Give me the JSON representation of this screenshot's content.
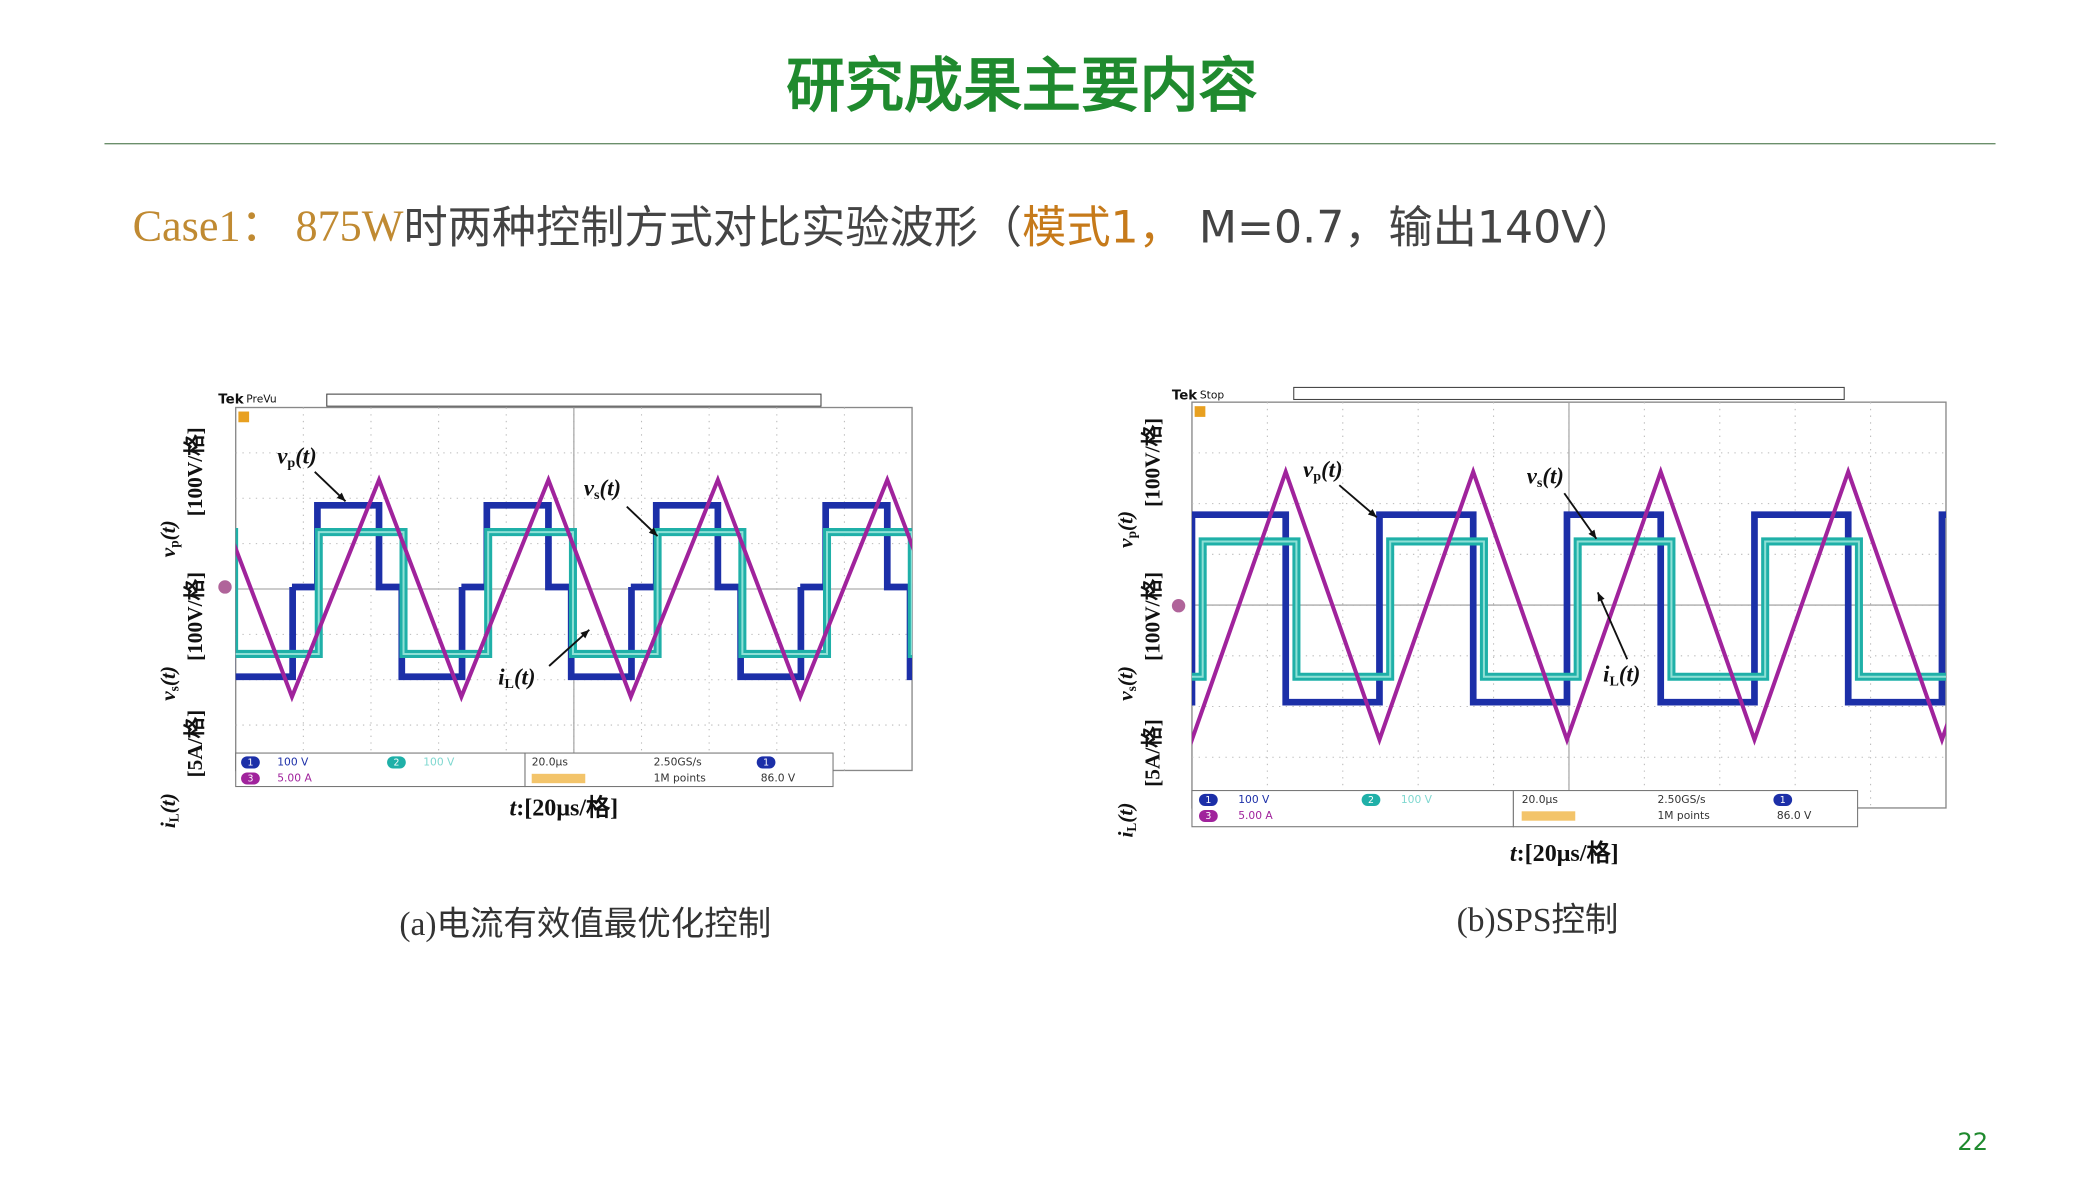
{
  "title": "研究成果主要内容",
  "subtitle": {
    "case": "Case1：",
    "power": "875W",
    "text1": "时两种控制方式对比实验波形（",
    "mode": "模式1，",
    "text2": "M=0.7，输出140V）"
  },
  "panels": [
    {
      "brand": "Tek",
      "status": "PreVu",
      "signals": {
        "vp": {
          "var": "v",
          "sub": "p",
          "arg": "(t)"
        },
        "vs": {
          "var": "v",
          "sub": "s",
          "arg": "(t)"
        },
        "il": {
          "var": "i",
          "sub": "L",
          "arg": "(t)"
        }
      },
      "y_units": {
        "vp": "[100V/格]",
        "vs": "[100V/格]",
        "il": "[5A/格]"
      },
      "x_label": {
        "var": "t",
        "unit": ":[20μs/格]"
      },
      "readout": {
        "ch1": "1",
        "ch1_scale": "100 V",
        "ch3": "3",
        "ch3_scale": "5.00 A",
        "ch2": "2",
        "ch2_scale": "100 V",
        "timebase": "20.0μs",
        "rate": "2.50GS/s",
        "points": "1M points",
        "trig_ch": "1",
        "trig_level": "86.0 V"
      },
      "caption": "(a)电流有效值最优化控制"
    },
    {
      "brand": "Tek",
      "status": "Stop",
      "signals": {
        "vp": {
          "var": "v",
          "sub": "p",
          "arg": "(t)"
        },
        "vs": {
          "var": "v",
          "sub": "s",
          "arg": "(t)"
        },
        "il": {
          "var": "i",
          "sub": "L",
          "arg": "(t)"
        }
      },
      "y_units": {
        "vp": "[100V/格]",
        "vs": "[100V/格]",
        "il": "[5A/格]"
      },
      "x_label": {
        "var": "t",
        "unit": ":[20μs/格]"
      },
      "readout": {
        "ch1": "1",
        "ch1_scale": "100 V",
        "ch3": "3",
        "ch3_scale": "5.00 A",
        "ch2": "2",
        "ch2_scale": "100 V",
        "timebase": "20.0μs",
        "rate": "2.50GS/s",
        "points": "1M points",
        "trig_ch": "1",
        "trig_level": "86.0 V"
      },
      "caption": "(b)SPS控制"
    }
  ],
  "page_number": "22"
}
